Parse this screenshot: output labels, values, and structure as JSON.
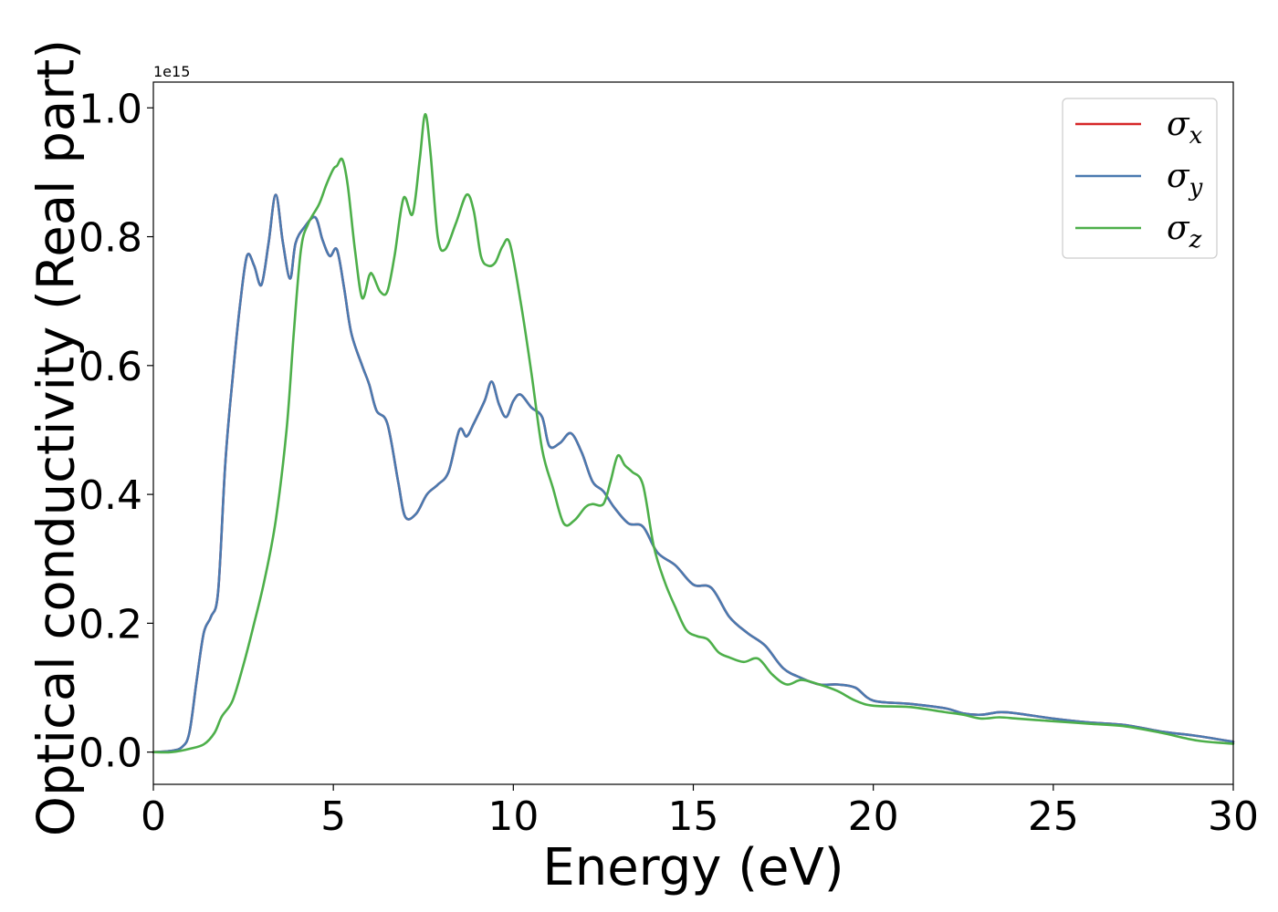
{
  "chart_data": {
    "type": "line",
    "xlabel": "Energy (eV)",
    "ylabel": "Optical conductivity (Real part)",
    "y_offset_label": "1e15",
    "xlim": [
      0,
      30
    ],
    "ylim": [
      -0.05,
      1.04
    ],
    "xticks": [
      0,
      5,
      10,
      15,
      20,
      25,
      30
    ],
    "xtick_labels": [
      "0",
      "5",
      "10",
      "15",
      "20",
      "25",
      "30"
    ],
    "yticks": [
      0.0,
      0.2,
      0.4,
      0.6,
      0.8,
      1.0
    ],
    "ytick_labels": [
      "0.0",
      "0.2",
      "0.4",
      "0.6",
      "0.8",
      "1.0"
    ],
    "grid": false,
    "legend_position": "top-right",
    "series": [
      {
        "name": "σx",
        "legend_symbol": "σ",
        "legend_subscript": "x",
        "color": "#d62728",
        "x": [
          0,
          0.5,
          0.8,
          1.0,
          1.2,
          1.4,
          1.6,
          1.8,
          2.0,
          2.2,
          2.4,
          2.6,
          2.8,
          3.0,
          3.2,
          3.4,
          3.6,
          3.8,
          3.95,
          4.2,
          4.5,
          4.7,
          4.9,
          5.1,
          5.3,
          5.5,
          5.8,
          6.0,
          6.2,
          6.5,
          6.8,
          7.0,
          7.3,
          7.6,
          7.9,
          8.2,
          8.5,
          8.7,
          8.9,
          9.2,
          9.4,
          9.6,
          9.8,
          10.0,
          10.2,
          10.5,
          10.8,
          11.0,
          11.3,
          11.6,
          11.9,
          12.2,
          12.5,
          12.8,
          13.2,
          13.6,
          14.0,
          14.5,
          15.0,
          15.5,
          16.0,
          16.5,
          17.0,
          17.5,
          18.0,
          18.5,
          19.0,
          19.5,
          20.0,
          21.0,
          22.0,
          22.5,
          23.0,
          23.5,
          24.0,
          25.0,
          26.0,
          27.0,
          28.0,
          29.0,
          30.0
        ],
        "y": [
          0.0,
          0.002,
          0.008,
          0.03,
          0.11,
          0.185,
          0.21,
          0.25,
          0.45,
          0.58,
          0.69,
          0.77,
          0.755,
          0.725,
          0.79,
          0.865,
          0.79,
          0.735,
          0.79,
          0.815,
          0.83,
          0.795,
          0.77,
          0.78,
          0.72,
          0.65,
          0.6,
          0.57,
          0.53,
          0.51,
          0.42,
          0.365,
          0.37,
          0.4,
          0.415,
          0.435,
          0.5,
          0.49,
          0.51,
          0.545,
          0.575,
          0.54,
          0.52,
          0.545,
          0.555,
          0.535,
          0.52,
          0.475,
          0.48,
          0.495,
          0.465,
          0.42,
          0.405,
          0.38,
          0.355,
          0.35,
          0.31,
          0.29,
          0.26,
          0.255,
          0.21,
          0.185,
          0.165,
          0.13,
          0.115,
          0.105,
          0.105,
          0.1,
          0.08,
          0.075,
          0.068,
          0.06,
          0.058,
          0.062,
          0.06,
          0.052,
          0.046,
          0.042,
          0.032,
          0.025,
          0.016
        ]
      },
      {
        "name": "σy",
        "legend_symbol": "σ",
        "legend_subscript": "y",
        "color": "#4a7ab0",
        "x": [
          0,
          0.5,
          0.8,
          1.0,
          1.2,
          1.4,
          1.6,
          1.8,
          2.0,
          2.2,
          2.4,
          2.6,
          2.8,
          3.0,
          3.2,
          3.4,
          3.6,
          3.8,
          3.95,
          4.2,
          4.5,
          4.7,
          4.9,
          5.1,
          5.3,
          5.5,
          5.8,
          6.0,
          6.2,
          6.5,
          6.8,
          7.0,
          7.3,
          7.6,
          7.9,
          8.2,
          8.5,
          8.7,
          8.9,
          9.2,
          9.4,
          9.6,
          9.8,
          10.0,
          10.2,
          10.5,
          10.8,
          11.0,
          11.3,
          11.6,
          11.9,
          12.2,
          12.5,
          12.8,
          13.2,
          13.6,
          14.0,
          14.5,
          15.0,
          15.5,
          16.0,
          16.5,
          17.0,
          17.5,
          18.0,
          18.5,
          19.0,
          19.5,
          20.0,
          21.0,
          22.0,
          22.5,
          23.0,
          23.5,
          24.0,
          25.0,
          26.0,
          27.0,
          28.0,
          29.0,
          30.0
        ],
        "y": [
          0.0,
          0.002,
          0.008,
          0.03,
          0.11,
          0.185,
          0.21,
          0.25,
          0.45,
          0.58,
          0.69,
          0.77,
          0.755,
          0.725,
          0.79,
          0.865,
          0.79,
          0.735,
          0.79,
          0.815,
          0.83,
          0.795,
          0.77,
          0.78,
          0.72,
          0.65,
          0.6,
          0.57,
          0.53,
          0.51,
          0.42,
          0.365,
          0.37,
          0.4,
          0.415,
          0.435,
          0.5,
          0.49,
          0.51,
          0.545,
          0.575,
          0.54,
          0.52,
          0.545,
          0.555,
          0.535,
          0.52,
          0.475,
          0.48,
          0.495,
          0.465,
          0.42,
          0.405,
          0.38,
          0.355,
          0.35,
          0.31,
          0.29,
          0.26,
          0.255,
          0.21,
          0.185,
          0.165,
          0.13,
          0.115,
          0.105,
          0.105,
          0.1,
          0.08,
          0.075,
          0.068,
          0.06,
          0.058,
          0.062,
          0.06,
          0.052,
          0.046,
          0.042,
          0.032,
          0.025,
          0.016
        ]
      },
      {
        "name": "σz",
        "legend_symbol": "σ",
        "legend_subscript": "z",
        "color": "#4daf4a",
        "x": [
          0,
          0.5,
          1.0,
          1.4,
          1.7,
          1.9,
          2.2,
          2.5,
          2.8,
          3.1,
          3.4,
          3.7,
          3.9,
          4.1,
          4.3,
          4.6,
          4.8,
          5.0,
          5.1,
          5.25,
          5.4,
          5.6,
          5.8,
          6.0,
          6.1,
          6.3,
          6.5,
          6.7,
          6.95,
          7.2,
          7.4,
          7.55,
          7.7,
          7.9,
          8.1,
          8.4,
          8.7,
          8.9,
          9.1,
          9.3,
          9.5,
          9.7,
          9.9,
          10.2,
          10.5,
          10.8,
          11.1,
          11.4,
          11.7,
          12.0,
          12.2,
          12.5,
          12.7,
          12.9,
          13.1,
          13.3,
          13.6,
          13.9,
          14.2,
          14.5,
          14.8,
          15.1,
          15.4,
          15.7,
          16.0,
          16.4,
          16.8,
          17.2,
          17.6,
          18.0,
          18.5,
          19.0,
          19.5,
          20.0,
          21.0,
          22.0,
          22.5,
          23.0,
          23.5,
          24.0,
          24.5,
          25.0,
          26.0,
          27.0,
          28.0,
          29.0,
          30.0
        ],
        "y": [
          0.0,
          0.0,
          0.005,
          0.012,
          0.03,
          0.055,
          0.08,
          0.135,
          0.2,
          0.27,
          0.36,
          0.5,
          0.65,
          0.78,
          0.82,
          0.85,
          0.88,
          0.905,
          0.91,
          0.92,
          0.88,
          0.78,
          0.705,
          0.74,
          0.74,
          0.715,
          0.715,
          0.77,
          0.86,
          0.835,
          0.92,
          0.99,
          0.93,
          0.8,
          0.78,
          0.82,
          0.865,
          0.84,
          0.77,
          0.755,
          0.76,
          0.785,
          0.79,
          0.7,
          0.59,
          0.47,
          0.41,
          0.355,
          0.36,
          0.38,
          0.385,
          0.385,
          0.42,
          0.46,
          0.445,
          0.435,
          0.415,
          0.32,
          0.265,
          0.225,
          0.19,
          0.18,
          0.175,
          0.155,
          0.147,
          0.14,
          0.145,
          0.12,
          0.105,
          0.112,
          0.105,
          0.095,
          0.08,
          0.072,
          0.07,
          0.062,
          0.058,
          0.052,
          0.054,
          0.052,
          0.05,
          0.048,
          0.044,
          0.04,
          0.03,
          0.018,
          0.013
        ]
      }
    ]
  }
}
